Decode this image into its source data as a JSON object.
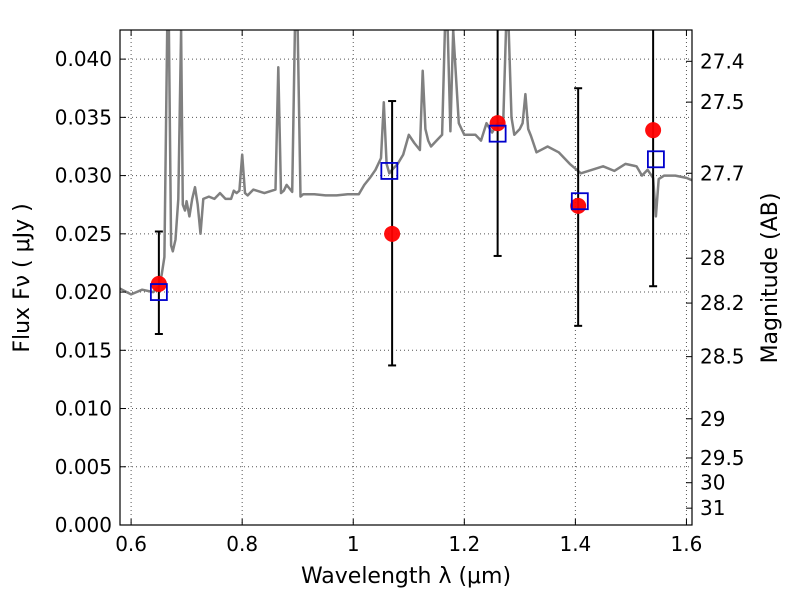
{
  "chart_data": {
    "type": "scatter",
    "xlabel": "Wavelength  λ (μm)",
    "ylabel": "Flux  Fν  ( μJy )",
    "y2label": "Magnitude (AB)",
    "xlim": [
      0.58,
      1.61
    ],
    "ylim": [
      0.0,
      0.0425
    ],
    "grid": true,
    "xticks": [
      0.6,
      0.8,
      1.0,
      1.2,
      1.4,
      1.6
    ],
    "xtick_labels": [
      "0.6",
      "0.8",
      "1",
      "1.2",
      "1.4",
      "1.6"
    ],
    "yticks": [
      0.0,
      0.005,
      0.01,
      0.015,
      0.02,
      0.025,
      0.03,
      0.035,
      0.04
    ],
    "ytick_labels": [
      "0.000",
      "0.005",
      "0.010",
      "0.015",
      "0.020",
      "0.025",
      "0.030",
      "0.035",
      "0.040"
    ],
    "y2ticks": [
      27.4,
      27.5,
      27.7,
      28.0,
      28.2,
      28.5,
      29.0,
      29.5,
      30.0,
      31.0
    ],
    "y2tick_labels": [
      "27.4",
      "27.5",
      "27.7",
      "28",
      "28.2",
      "28.5",
      "29",
      "29.5",
      "30",
      "31"
    ],
    "colors": {
      "spectrum": "#808080",
      "observed": "#ff0000",
      "model": "#0000cc",
      "errorbar": "#000000",
      "grid": "#555555"
    },
    "observed": {
      "x": [
        0.65,
        1.07,
        1.26,
        1.405,
        1.54
      ],
      "y": [
        0.0207,
        0.025,
        0.0345,
        0.0274,
        0.0339
      ],
      "yerr_low": [
        0.0164,
        0.0137,
        0.0231,
        0.0171,
        0.0205
      ],
      "yerr_high": [
        0.0252,
        0.0364,
        0.0425,
        0.0375,
        0.0425
      ]
    },
    "model_points": {
      "x": [
        0.65,
        1.065,
        1.26,
        1.408,
        1.545
      ],
      "y": [
        0.02,
        0.0304,
        0.0336,
        0.0278,
        0.0314
      ]
    },
    "spectrum": {
      "x": [
        0.58,
        0.6,
        0.62,
        0.64,
        0.65,
        0.655,
        0.66,
        0.665,
        0.668,
        0.672,
        0.675,
        0.68,
        0.685,
        0.69,
        0.693,
        0.697,
        0.7,
        0.705,
        0.71,
        0.715,
        0.72,
        0.725,
        0.73,
        0.74,
        0.75,
        0.76,
        0.77,
        0.78,
        0.785,
        0.79,
        0.795,
        0.8,
        0.805,
        0.81,
        0.82,
        0.84,
        0.86,
        0.865,
        0.87,
        0.875,
        0.88,
        0.89,
        0.895,
        0.9,
        0.905,
        0.91,
        0.93,
        0.95,
        0.97,
        0.99,
        1.01,
        1.02,
        1.03,
        1.04,
        1.05,
        1.055,
        1.06,
        1.065,
        1.07,
        1.08,
        1.09,
        1.1,
        1.11,
        1.12,
        1.125,
        1.13,
        1.135,
        1.14,
        1.15,
        1.16,
        1.165,
        1.17,
        1.175,
        1.18,
        1.19,
        1.2,
        1.21,
        1.22,
        1.23,
        1.24,
        1.25,
        1.26,
        1.27,
        1.275,
        1.28,
        1.285,
        1.29,
        1.3,
        1.305,
        1.31,
        1.315,
        1.32,
        1.33,
        1.35,
        1.37,
        1.39,
        1.41,
        1.43,
        1.45,
        1.47,
        1.49,
        1.51,
        1.52,
        1.53,
        1.54,
        1.545,
        1.55,
        1.56,
        1.58,
        1.6,
        1.61
      ],
      "y": [
        0.0203,
        0.0198,
        0.0202,
        0.02,
        0.0205,
        0.0215,
        0.023,
        0.0425,
        0.0425,
        0.024,
        0.0235,
        0.0245,
        0.028,
        0.0425,
        0.0275,
        0.027,
        0.0278,
        0.0265,
        0.028,
        0.029,
        0.0275,
        0.025,
        0.028,
        0.0282,
        0.028,
        0.0285,
        0.028,
        0.028,
        0.0287,
        0.0285,
        0.0287,
        0.0318,
        0.0285,
        0.0283,
        0.0288,
        0.0285,
        0.0288,
        0.0393,
        0.0285,
        0.0287,
        0.0292,
        0.0286,
        0.0425,
        0.0425,
        0.0282,
        0.0284,
        0.0284,
        0.0283,
        0.0283,
        0.0284,
        0.0284,
        0.0292,
        0.0298,
        0.0305,
        0.0315,
        0.0363,
        0.031,
        0.0302,
        0.0305,
        0.031,
        0.0318,
        0.0335,
        0.0328,
        0.0322,
        0.039,
        0.034,
        0.033,
        0.0325,
        0.033,
        0.0335,
        0.0425,
        0.0425,
        0.0338,
        0.0425,
        0.0345,
        0.0335,
        0.0335,
        0.0335,
        0.033,
        0.0345,
        0.0337,
        0.0345,
        0.0345,
        0.0425,
        0.0425,
        0.035,
        0.0335,
        0.034,
        0.0345,
        0.037,
        0.034,
        0.0334,
        0.032,
        0.0325,
        0.032,
        0.031,
        0.0302,
        0.0305,
        0.0308,
        0.0304,
        0.031,
        0.0308,
        0.03,
        0.0305,
        0.0298,
        0.0265,
        0.0297,
        0.03,
        0.03,
        0.0298,
        0.0296
      ]
    }
  }
}
